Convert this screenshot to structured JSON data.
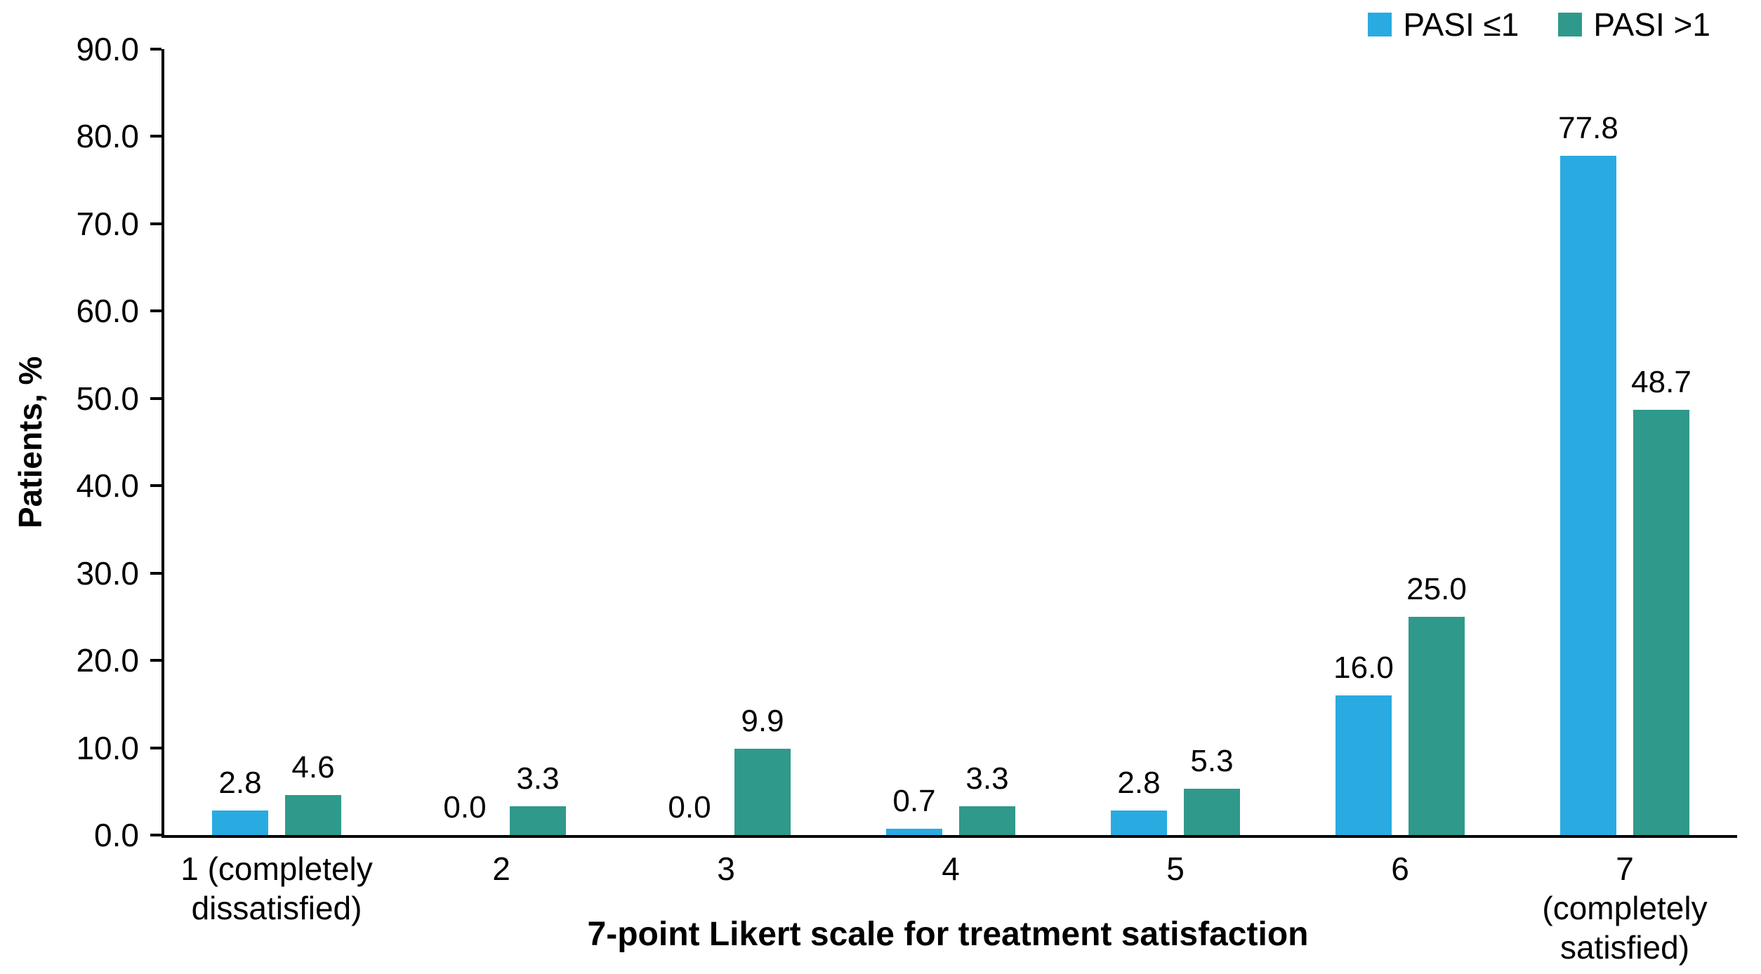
{
  "chart_data": {
    "type": "bar",
    "title": "",
    "xlabel": "7-point Likert scale for treatment satisfaction",
    "ylabel": "Patients, %",
    "ylim": [
      0,
      90
    ],
    "ytick_step": 10,
    "ytick_decimals": 1,
    "grid": false,
    "value_labels": true,
    "legend_position": "top-right",
    "categories": [
      "1 (completely\ndissatisfied)",
      "2",
      "3",
      "4",
      "5",
      "6",
      "7 (completely\nsatisfied)"
    ],
    "series": [
      {
        "name": "PASI ≤1",
        "color": "#29ABE2",
        "values": [
          2.8,
          0.0,
          0.0,
          0.7,
          2.8,
          16.0,
          77.8
        ]
      },
      {
        "name": "PASI >1",
        "color": "#2F998B",
        "values": [
          4.6,
          3.3,
          9.9,
          3.3,
          5.3,
          25.0,
          48.7
        ]
      }
    ]
  }
}
